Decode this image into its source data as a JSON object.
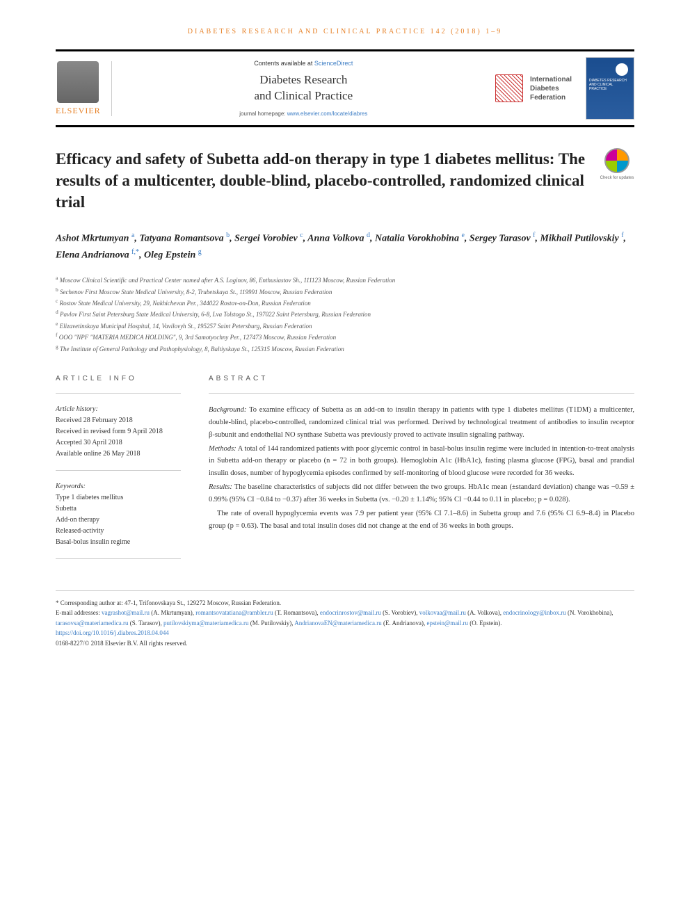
{
  "header_citation": "diabetes research and clinical practice 142 (2018) 1–9",
  "banner": {
    "contents_prefix": "Contents available at ",
    "contents_link": "ScienceDirect",
    "journal_name": "Diabetes Research\nand Clinical Practice",
    "homepage_prefix": "journal homepage: ",
    "homepage_url": "www.elsevier.com/locate/diabres",
    "elsevier": "ELSEVIER",
    "idf_line1": "International",
    "idf_line2": "Diabetes",
    "idf_line3": "Federation",
    "cover_text": "DIABETES RESEARCH AND CLINICAL PRACTICE"
  },
  "check_updates": "Check for updates",
  "title": "Efficacy and safety of Subetta add-on therapy in type 1 diabetes mellitus: The results of a multicenter, double-blind, placebo-controlled, randomized clinical trial",
  "authors_html": "Ashot Mkrtumyan <sup>a</sup>, Tatyana Romantsova <sup>b</sup>, Sergei Vorobiev <sup>c</sup>, Anna Volkova <sup>d</sup>, Natalia Vorokhobina <sup>e</sup>, Sergey Tarasov <sup>f</sup>, Mikhail Putilovskiy <sup>f</sup>, Elena Andrianova <sup>f,*</sup>, Oleg Epstein <sup>g</sup>",
  "affiliations": [
    {
      "sup": "a",
      "text": "Moscow Clinical Scientific and Practical Center named after A.S. Loginov, 86, Enthusiastov Sh., 111123 Moscow, Russian Federation"
    },
    {
      "sup": "b",
      "text": "Sechenov First Moscow State Medical University, 8-2, Trubetskaya St., 119991 Moscow, Russian Federation"
    },
    {
      "sup": "c",
      "text": "Rostov State Medical University, 29, Nakhichevan Per., 344022 Rostov-on-Don, Russian Federation"
    },
    {
      "sup": "d",
      "text": "Pavlov First Saint Petersburg State Medical University, 6-8, Lva Tolstogo St., 197022 Saint Petersburg, Russian Federation"
    },
    {
      "sup": "e",
      "text": "Elizavetinskaya Municipal Hospital, 14, Vavilovyh St., 195257 Saint Petersburg, Russian Federation"
    },
    {
      "sup": "f",
      "text": "OOO \"NPF \"MATERIA MEDICA HOLDING\", 9, 3rd Samotyochny Per., 127473 Moscow, Russian Federation"
    },
    {
      "sup": "g",
      "text": "The Institute of General Pathology and Pathophysiology, 8, Baltiyskaya St., 125315 Moscow, Russian Federation"
    }
  ],
  "article_info": {
    "head": "ARTICLE INFO",
    "history_label": "Article history:",
    "received": "Received 28 February 2018",
    "revised": "Received in revised form 9 April 2018",
    "accepted": "Accepted 30 April 2018",
    "online": "Available online 26 May 2018",
    "keywords_label": "Keywords:",
    "keywords": [
      "Type 1 diabetes mellitus",
      "Subetta",
      "Add-on therapy",
      "Released-activity",
      "Basal-bolus insulin regime"
    ]
  },
  "abstract": {
    "head": "ABSTRACT",
    "background_label": "Background:",
    "background": "To examine efficacy of Subetta as an add-on to insulin therapy in patients with type 1 diabetes mellitus (T1DM) a multicenter, double-blind, placebo-controlled, randomized clinical trial was performed. Derived by technological treatment of antibodies to insulin receptor β-subunit and endothelial NO synthase Subetta was previously proved to activate insulin signaling pathway.",
    "methods_label": "Methods:",
    "methods": "A total of 144 randomized patients with poor glycemic control in basal-bolus insulin regime were included in intention-to-treat analysis in Subetta add-on therapy or placebo (n = 72 in both groups). Hemoglobin A1c (HbA1c), fasting plasma glucose (FPG), basal and prandial insulin doses, number of hypoglycemia episodes confirmed by self-monitoring of blood glucose were recorded for 36 weeks.",
    "results_label": "Results:",
    "results1": "The baseline characteristics of subjects did not differ between the two groups. HbA1c mean (±standard deviation) change was −0.59 ± 0.99% (95% CI −0.84 to −0.37) after 36 weeks in Subetta (vs. −0.20 ± 1.14%; 95% CI −0.44 to 0.11 in placebo; p = 0.028).",
    "results2": "The rate of overall hypoglycemia events was 7.9 per patient year (95% CI 7.1–8.6) in Subetta group and 7.6 (95% CI 6.9–8.4) in Placebo group (p = 0.63). The basal and total insulin doses did not change at the end of 36 weeks in both groups."
  },
  "footer": {
    "corresponding": "* Corresponding author at: 47-1, Trifonovskaya St., 129272 Moscow, Russian Federation.",
    "email_label": "E-mail addresses:",
    "emails": [
      {
        "addr": "vagrashot@mail.ru",
        "name": "(A. Mkrtumyan)"
      },
      {
        "addr": "romantsovatatiana@rambler.ru",
        "name": "(T. Romantsova)"
      },
      {
        "addr": "endocrinrostov@mail.ru",
        "name": "(S. Vorobiev)"
      },
      {
        "addr": "volkovaa@mail.ru",
        "name": "(A. Volkova)"
      },
      {
        "addr": "endocrinology@inbox.ru",
        "name": "(N. Vorokhobina)"
      },
      {
        "addr": "tarasovsa@materiamedica.ru",
        "name": "(S. Tarasov)"
      },
      {
        "addr": "putilovskiyma@materiamedica.ru",
        "name": "(M. Putilovskiy)"
      },
      {
        "addr": "AndrianovaEN@materiamedica.ru",
        "name": "(E. Andrianova)"
      },
      {
        "addr": "epstein@mail.ru",
        "name": "(O. Epstein)"
      }
    ],
    "doi": "https://doi.org/10.1016/j.diabres.2018.04.044",
    "copyright": "0168-8227/© 2018 Elsevier B.V. All rights reserved."
  }
}
